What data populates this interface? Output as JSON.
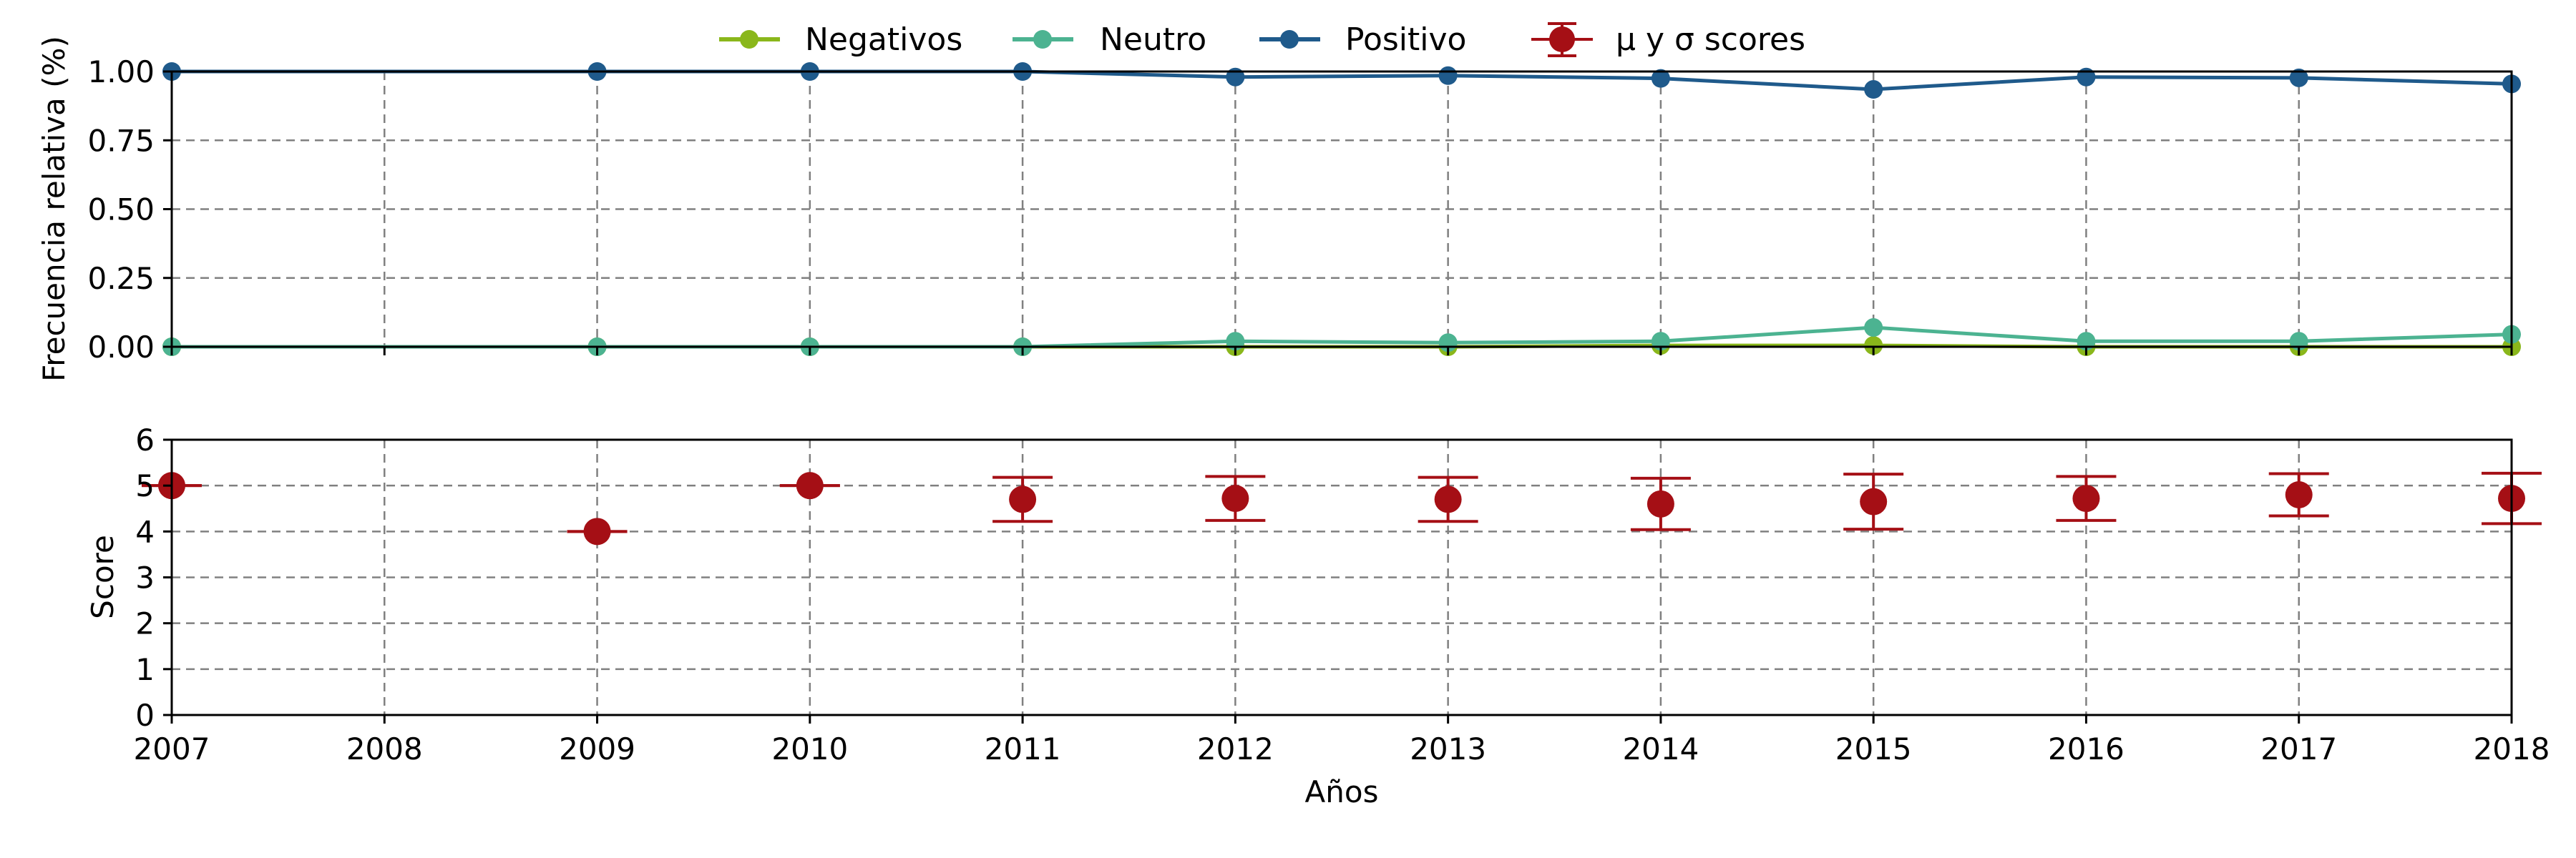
{
  "chart_data": [
    {
      "type": "line",
      "panel": "top",
      "ylabel": "Frecuencia relativa (%)",
      "ylim": [
        0,
        1
      ],
      "xlim": [
        2007,
        2018
      ],
      "yticks": [
        "0.00",
        "0.25",
        "0.50",
        "0.75",
        "1.00"
      ],
      "grid": true,
      "legend_placement": "top-center",
      "series": [
        {
          "name": "Negativos",
          "color": "#8ab71b",
          "x": [
            2007,
            2009,
            2010,
            2011,
            2012,
            2013,
            2014,
            2015,
            2016,
            2017,
            2018
          ],
          "values": [
            0,
            0,
            0,
            0,
            0,
            0,
            0.005,
            0.005,
            0,
            0,
            0
          ]
        },
        {
          "name": "Neutro",
          "color": "#4cb391",
          "x": [
            2007,
            2009,
            2010,
            2011,
            2012,
            2013,
            2014,
            2015,
            2016,
            2017,
            2018
          ],
          "values": [
            0,
            0,
            0,
            0,
            0.02,
            0.015,
            0.02,
            0.07,
            0.02,
            0.02,
            0.045
          ]
        },
        {
          "name": "Positivo",
          "color": "#1f5a8b",
          "x": [
            2007,
            2009,
            2010,
            2011,
            2012,
            2013,
            2014,
            2015,
            2016,
            2017,
            2018
          ],
          "values": [
            1,
            1,
            1,
            1,
            0.98,
            0.985,
            0.975,
            0.935,
            0.98,
            0.977,
            0.955
          ]
        }
      ]
    },
    {
      "type": "scatter",
      "panel": "bottom",
      "ylabel": "Score",
      "xlabel": "Años",
      "ylim": [
        0,
        6
      ],
      "xlim": [
        2007,
        2018
      ],
      "yticks": [
        "0",
        "1",
        "2",
        "3",
        "4",
        "5",
        "6"
      ],
      "xticks": [
        "2007",
        "2008",
        "2009",
        "2010",
        "2011",
        "2012",
        "2013",
        "2014",
        "2015",
        "2016",
        "2017",
        "2018"
      ],
      "grid": true,
      "series": [
        {
          "name": "μ y σ scores",
          "color": "#a50f15",
          "x": [
            2007,
            2009,
            2010,
            2011,
            2012,
            2013,
            2014,
            2015,
            2016,
            2017,
            2018
          ],
          "values": [
            5.0,
            4.0,
            5.0,
            4.7,
            4.72,
            4.7,
            4.6,
            4.65,
            4.72,
            4.8,
            4.72
          ],
          "std": [
            0,
            0,
            0,
            0.48,
            0.48,
            0.48,
            0.56,
            0.6,
            0.48,
            0.46,
            0.55
          ]
        }
      ]
    }
  ]
}
